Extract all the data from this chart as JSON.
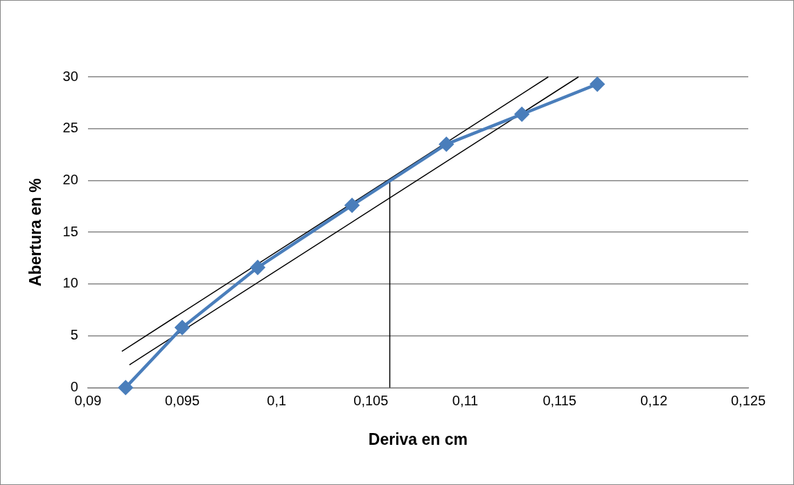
{
  "chart_data": {
    "type": "line",
    "xlabel": "Deriva en cm",
    "ylabel": "Abertura en %",
    "x": [
      0.092,
      0.095,
      0.099,
      0.104,
      0.109,
      0.113,
      0.117
    ],
    "series": [
      {
        "color": "#4a7ebb",
        "marker": "diamond",
        "values": [
          0,
          5.8,
          11.6,
          17.6,
          23.5,
          26.4,
          29.3
        ]
      },
      {
        "type": "line",
        "color": "#000000",
        "marker": "none",
        "x": [
          0.0918,
          0.1144
        ],
        "values": [
          3.5,
          30
        ]
      },
      {
        "type": "line",
        "color": "#000000",
        "marker": "none",
        "x": [
          0.0922,
          0.116
        ],
        "values": [
          2.2,
          30
        ]
      },
      {
        "type": "line",
        "color": "#000000",
        "marker": "none",
        "x": [
          0.106,
          0.106
        ],
        "values": [
          0,
          20
        ]
      }
    ],
    "xlim": [
      0.09,
      0.125
    ],
    "xticks": [
      {
        "value": 0.09,
        "label": "0,09"
      },
      {
        "value": 0.095,
        "label": "0,095"
      },
      {
        "value": 0.1,
        "label": "0,1"
      },
      {
        "value": 0.105,
        "label": "0,105"
      },
      {
        "value": 0.11,
        "label": "0,11"
      },
      {
        "value": 0.115,
        "label": "0,115"
      },
      {
        "value": 0.12,
        "label": "0,12"
      },
      {
        "value": 0.125,
        "label": "0,125"
      }
    ],
    "ylim": [
      0,
      30
    ],
    "yticks": [
      0,
      5,
      10,
      15,
      20,
      25,
      30
    ],
    "grid": "y"
  }
}
